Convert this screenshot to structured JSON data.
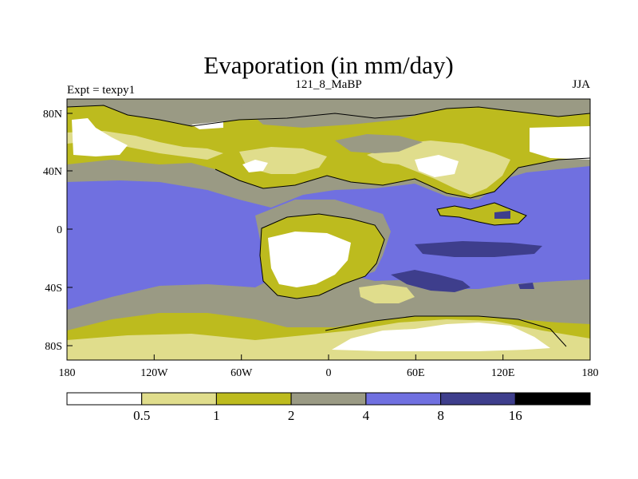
{
  "title": "Evaporation (in mm/day)",
  "subtitle_left": "Expt = texpy1",
  "subtitle_center": "121_8_MaBP",
  "subtitle_right": "JJA",
  "x_ticks": [
    "180",
    "120W",
    "60W",
    "0",
    "60E",
    "120E",
    "180"
  ],
  "y_ticks": [
    "80N",
    "40N",
    "0",
    "40S",
    "80S"
  ],
  "colorbar": {
    "boundaries": [
      "0.5",
      "1",
      "2",
      "4",
      "8",
      "16"
    ],
    "colors": [
      "#ffffff",
      "#e0dd8c",
      "#bdbb1e",
      "#9a9a84",
      "#7070e0",
      "#3e3e8c",
      "#000000"
    ]
  },
  "map_layers": {
    "ocean_base": "#7070e0",
    "gray": "#9a9a84",
    "olive": "#bdbb1e",
    "light_yellow": "#e0dd8c",
    "white": "#ffffff",
    "dark_blue": "#3e3e8c"
  }
}
